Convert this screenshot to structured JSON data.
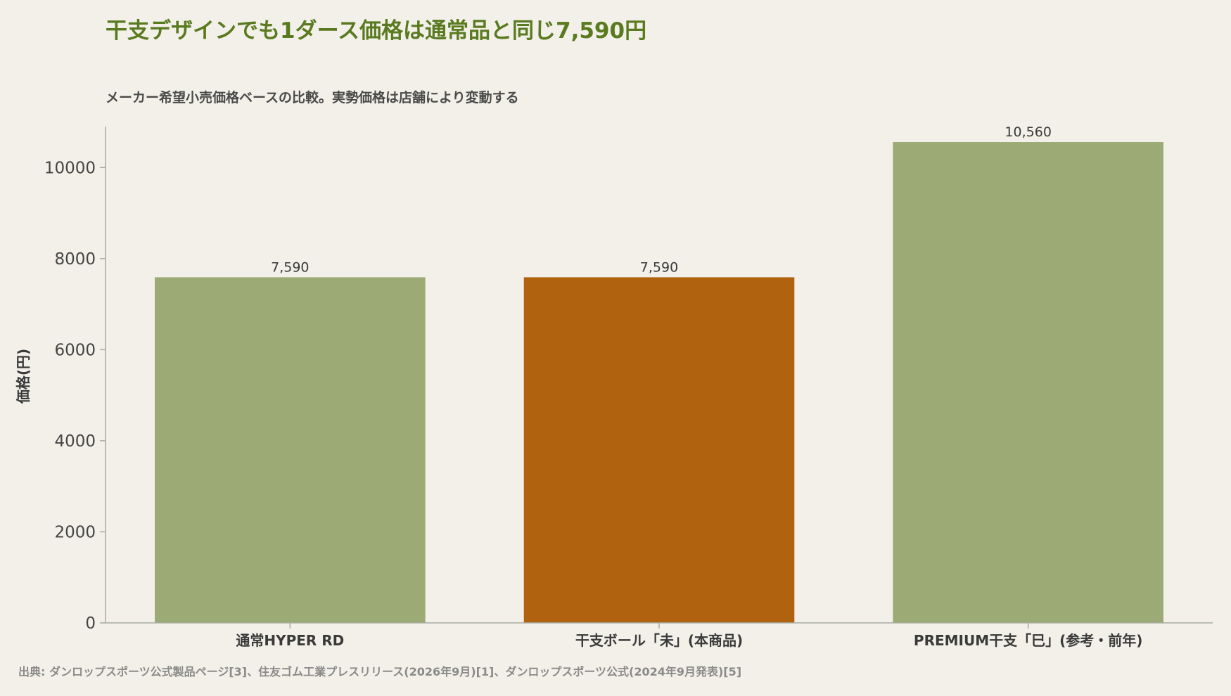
{
  "header": {
    "title": "干支デザインでも1ダース価格は通常品と同じ7,590円",
    "subtitle": "メーカー希望小売価格ベースの比較。実勢価格は店舗により変動する"
  },
  "footer": {
    "source": "出典: ダンロップスポーツ公式製品ページ[3]、住友ゴム工業プレスリリース(2026年9月)[1]、ダンロップスポーツ公式(2024年9月発表)[5]"
  },
  "colors": {
    "title": "#5a7a1f",
    "bar_default": "#9caa76",
    "bar_highlight": "#b0620f",
    "axis": "#a8aaa0"
  },
  "chart_data": {
    "type": "bar",
    "ylabel": "価格(円)",
    "xlabel": "",
    "ylim": [
      0,
      10900
    ],
    "yticks": [
      0,
      2000,
      4000,
      6000,
      8000,
      10000
    ],
    "grid": false,
    "categories": [
      "通常HYPER RD",
      "干支ボール「未」(本商品)",
      "PREMIUM干支「巳」(参考・前年)"
    ],
    "values": [
      7590,
      7590,
      10560
    ],
    "value_labels": [
      "7,590",
      "7,590",
      "10,560"
    ],
    "highlight_index": 1
  }
}
